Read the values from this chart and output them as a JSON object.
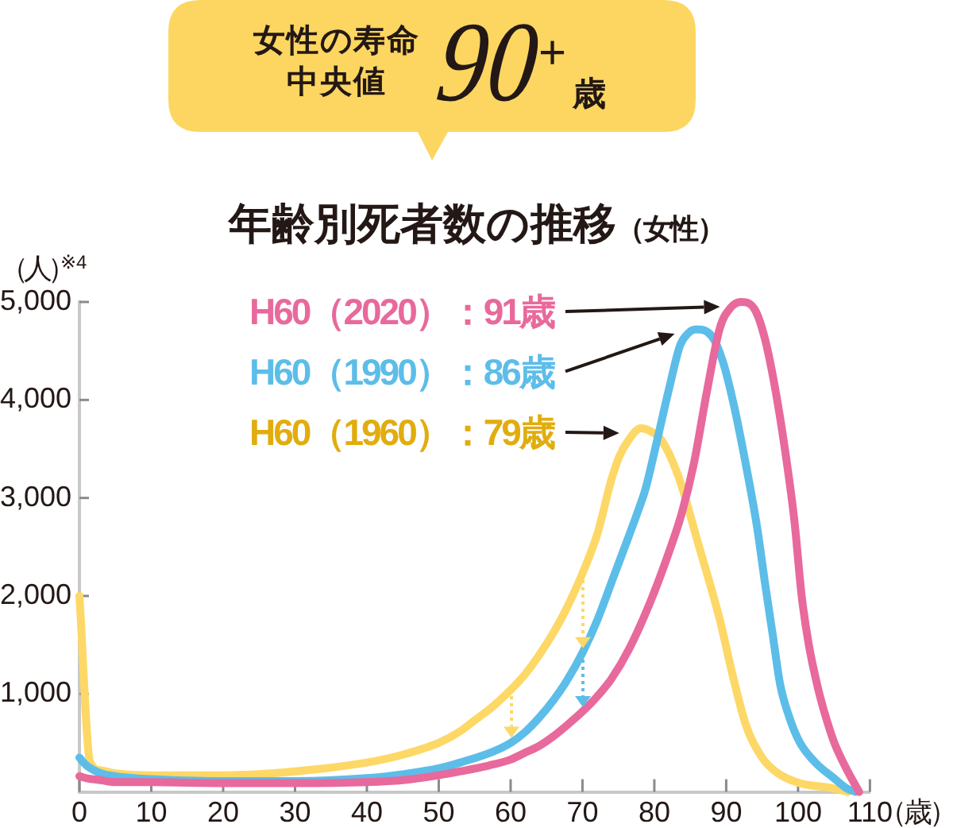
{
  "chart_data": {
    "type": "line",
    "title": "年齢別死者数の推移",
    "subtitle": "（女性）",
    "ylabel": "（人）$^{※4}$",
    "xlabel": "（歳）",
    "annotations": [
      "女性の寿命中央値",
      "90$^{+}$$_{歳}$"
    ],
    "xlim": [
      0,
      110
    ],
    "xticks": [
      0,
      10,
      20,
      30,
      40,
      50,
      60,
      70,
      80,
      90,
      100,
      110
    ],
    "ylim": [
      0,
      5000
    ],
    "yticks": [
      {
        "value": 1000,
        "label": "1,000"
      },
      {
        "value": 2000,
        "label": "2,000"
      },
      {
        "value": 3000,
        "label": "3,000"
      },
      {
        "value": 4000,
        "label": "4,000"
      },
      {
        "value": 5000,
        "label": "5,000"
      }
    ],
    "series": [
      {
        "name": "H60（2020）：91歳",
        "color": "#e8699c",
        "x": [
          0,
          1,
          3,
          5,
          10,
          20,
          30,
          40,
          45,
          50,
          53,
          57,
          60,
          62,
          64,
          66,
          68,
          70,
          72,
          74,
          76.5,
          79.5,
          82.1,
          83.8,
          85.5,
          87.3,
          89.1,
          90.6,
          92.1,
          94,
          95.4,
          96.9,
          98.4,
          99.5,
          100.5,
          101.5,
          102.8,
          103.8,
          105,
          106.7,
          108.5
        ],
        "values": [
          160,
          140,
          120,
          100,
          100,
          90,
          90,
          100,
          120,
          170,
          210,
          270,
          330,
          400,
          470,
          570,
          690,
          820,
          970,
          1150,
          1460,
          1950,
          2460,
          2840,
          3350,
          4080,
          4730,
          4940,
          5000,
          4920,
          4620,
          4080,
          3380,
          2760,
          2000,
          1500,
          1050,
          780,
          510,
          240,
          0
        ]
      },
      {
        "name": "H60（1990）：86歳",
        "color": "#5cbde9",
        "x": [
          0,
          1,
          3,
          5,
          10,
          20,
          30,
          40,
          45,
          50,
          53,
          57.5,
          60,
          62,
          64,
          66,
          67.7,
          70,
          72.1,
          74.3,
          76.5,
          77.7,
          78.8,
          80.3,
          82,
          83.6,
          84.7,
          85.8,
          88,
          89.5,
          91,
          92.5,
          94.3,
          95.4,
          96.5,
          97.5,
          98.7,
          100.2,
          102.4,
          105,
          106.7,
          108
        ],
        "values": [
          350,
          270,
          190,
          160,
          130,
          110,
          110,
          140,
          180,
          240,
          300,
          410,
          500,
          610,
          760,
          940,
          1120,
          1420,
          1760,
          2190,
          2620,
          2860,
          3100,
          3560,
          4100,
          4560,
          4680,
          4720,
          4650,
          4400,
          3970,
          3430,
          2700,
          2130,
          1590,
          1100,
          780,
          510,
          300,
          140,
          40,
          0
        ]
      },
      {
        "name": "H60（1960）：79歳",
        "color": "#fdd866",
        "x": [
          0,
          1.5,
          3,
          5,
          10,
          20,
          30,
          40,
          45,
          50,
          53,
          55,
          57.5,
          60,
          62,
          64,
          66,
          67.7,
          70,
          72.1,
          74,
          75.1,
          76.5,
          78.1,
          79.5,
          81,
          83.3,
          86.2,
          89.1,
          91,
          92.8,
          95,
          97.2,
          100.2,
          104.6,
          107
        ],
        "values": [
          2000,
          300,
          220,
          190,
          170,
          170,
          210,
          300,
          380,
          500,
          620,
          730,
          870,
          1040,
          1200,
          1400,
          1630,
          1860,
          2230,
          2640,
          3180,
          3420,
          3600,
          3710,
          3680,
          3590,
          3230,
          2510,
          1760,
          1160,
          670,
          350,
          190,
          90,
          40,
          0
        ]
      }
    ]
  }
}
